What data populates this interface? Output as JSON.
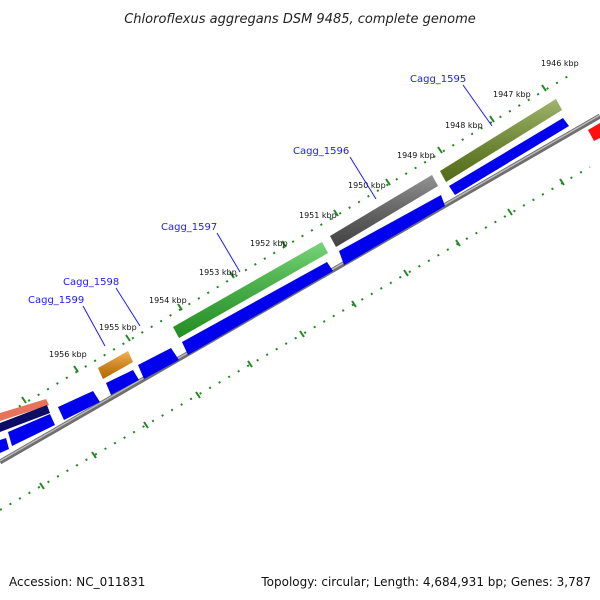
{
  "title": "Chloroflexus aggregans DSM 9485, complete genome",
  "footer": {
    "accession": "Accession: NC_011831",
    "summary": "Topology: circular; Length: 4,684,931 bp; Genes: 3,787"
  },
  "kbp_labels": [
    "1946 kbp",
    "1947 kbp",
    "1948 kbp",
    "1949 kbp",
    "1950 kbp",
    "1951 kbp",
    "1952 kbp",
    "1953 kbp",
    "1954 kbp",
    "1955 kbp",
    "1956 kbp"
  ],
  "gene_labels": [
    "Cagg_1595",
    "Cagg_1596",
    "Cagg_1597",
    "Cagg_1598",
    "Cagg_1599"
  ],
  "colors": {
    "olive_gene": "#6f8f1f",
    "gray_gene": "#5a5a5a",
    "green_gene": "#2fbf2f",
    "orange_gene": "#f08c00",
    "salmon_gene": "#e8735a",
    "navy_gene": "#0d0d66",
    "blue_cds": "#0000ee",
    "red_gene": "#ff1010",
    "backbone": "#808080",
    "tick_dots": "#228822",
    "label_blue": "#1a1aff"
  }
}
